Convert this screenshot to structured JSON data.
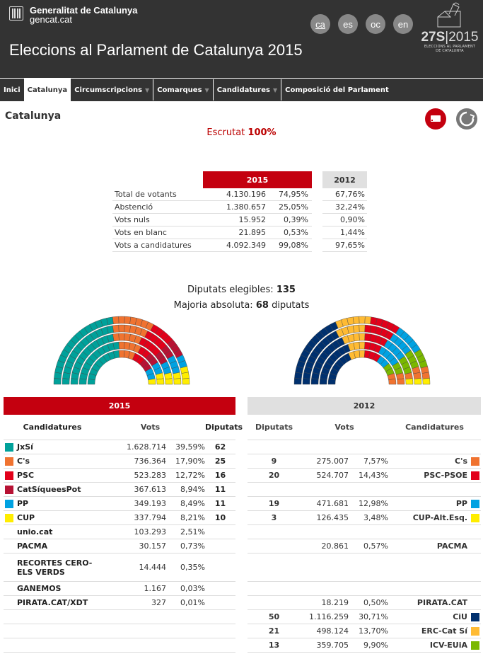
{
  "header": {
    "org_line1": "Generalitat de Catalunya",
    "org_line2": "gencat.cat",
    "title": "Eleccions al Parlament de Catalunya 2015",
    "languages": [
      "ca",
      "es",
      "oc",
      "en"
    ],
    "active_language": "ca",
    "brand": {
      "date": "27S",
      "year": "2015",
      "line1": "ELECCIONS AL PARLAMENT",
      "line2": "DE CATALUNYA"
    }
  },
  "nav": [
    {
      "label": "Inici",
      "dropdown": false,
      "active": false
    },
    {
      "label": "Catalunya",
      "dropdown": false,
      "active": true
    },
    {
      "label": "Circumscripcions",
      "dropdown": true,
      "active": false
    },
    {
      "label": "Comarques",
      "dropdown": true,
      "active": false
    },
    {
      "label": "Candidatures",
      "dropdown": true,
      "active": false
    },
    {
      "label": "Composició del Parlament",
      "dropdown": false,
      "active": false
    }
  ],
  "page": {
    "title": "Catalunya",
    "escrutat_label": "Escrutat",
    "escrutat_value": "100%",
    "print_icon": "print-icon",
    "refresh_icon": "refresh-icon"
  },
  "summary": {
    "year_current": "2015",
    "year_previous": "2012",
    "rows": [
      {
        "label": "Total de votants",
        "votes": "4.130.196",
        "pct": "74,95%",
        "pct_2012": "67,76%"
      },
      {
        "label": "Abstenció",
        "votes": "1.380.657",
        "pct": "25,05%",
        "pct_2012": "32,24%"
      },
      {
        "label": "Vots nuls",
        "votes": "15.952",
        "pct": "0,39%",
        "pct_2012": "0,90%"
      },
      {
        "label": "Vots en blanc",
        "votes": "21.895",
        "pct": "0,53%",
        "pct_2012": "1,44%"
      },
      {
        "label": "Vots a candidatures",
        "votes": "4.092.349",
        "pct": "99,08%",
        "pct_2012": "97,65%"
      }
    ]
  },
  "deputies": {
    "elegibles_label": "Diputats elegibles:",
    "elegibles_value": "135",
    "majoria_label": "Majoria absoluta:",
    "majoria_value": "68",
    "majoria_suffix": "diputats"
  },
  "colors": {
    "accent_red": "#c4000f",
    "JxSi": "#00a19a",
    "Cs": "#f07330",
    "PSC": "#e2001a",
    "CatSiqueesPot": "#b71234",
    "PP": "#00a2e2",
    "CUP": "#ffed00",
    "CiU": "#00306e",
    "ERC": "#ffbb33",
    "ICV": "#7ab800"
  },
  "chart_data": [
    {
      "type": "parliament",
      "title": "2015",
      "total_seats": 135,
      "categories": [
        "JxSí",
        "C's",
        "PSC",
        "CatSíqueesPot",
        "PP",
        "CUP"
      ],
      "values": [
        62,
        25,
        16,
        11,
        11,
        10
      ],
      "colors": [
        "#00a19a",
        "#f07330",
        "#e2001a",
        "#b71234",
        "#00a2e2",
        "#ffed00"
      ]
    },
    {
      "type": "parliament",
      "title": "2012",
      "total_seats": 135,
      "categories": [
        "CiU",
        "ERC-Cat Sí",
        "PSC-PSOE",
        "PP",
        "ICV-EUiA",
        "C's",
        "CUP-Alt.Esq."
      ],
      "values": [
        50,
        21,
        20,
        19,
        13,
        9,
        3
      ],
      "colors": [
        "#00306e",
        "#ffbb33",
        "#e2001a",
        "#00a2e2",
        "#7ab800",
        "#f07330",
        "#ffed00"
      ]
    }
  ],
  "results_2015": {
    "year": "2015",
    "headers": {
      "name": "Candidatures",
      "votes": "Vots",
      "seats": "Diputats"
    },
    "rows": [
      {
        "name": "JxSí",
        "votes": "1.628.714",
        "pct": "39,59%",
        "seats": "62",
        "color": "#00a19a"
      },
      {
        "name": "C's",
        "votes": "736.364",
        "pct": "17,90%",
        "seats": "25",
        "color": "#f07330"
      },
      {
        "name": "PSC",
        "votes": "523.283",
        "pct": "12,72%",
        "seats": "16",
        "color": "#e2001a"
      },
      {
        "name": "CatSíqueesPot",
        "votes": "367.613",
        "pct": "8,94%",
        "seats": "11",
        "color": "#b71234"
      },
      {
        "name": "PP",
        "votes": "349.193",
        "pct": "8,49%",
        "seats": "11",
        "color": "#00a2e2"
      },
      {
        "name": "CUP",
        "votes": "337.794",
        "pct": "8,21%",
        "seats": "10",
        "color": "#ffed00"
      },
      {
        "name": "unio.cat",
        "votes": "103.293",
        "pct": "2,51%",
        "seats": "",
        "color": ""
      },
      {
        "name": "PACMA",
        "votes": "30.157",
        "pct": "0,73%",
        "seats": "",
        "color": ""
      },
      {
        "name": "RECORTES CERO-ELS VERDS",
        "votes": "14.444",
        "pct": "0,35%",
        "seats": "",
        "color": "",
        "tall": true
      },
      {
        "name": "GANEMOS",
        "votes": "1.167",
        "pct": "0,03%",
        "seats": "",
        "color": ""
      },
      {
        "name": "PIRATA.CAT/XDT",
        "votes": "327",
        "pct": "0,01%",
        "seats": "",
        "color": ""
      },
      {
        "name": "",
        "votes": "",
        "pct": "",
        "seats": "",
        "color": ""
      },
      {
        "name": "",
        "votes": "",
        "pct": "",
        "seats": "",
        "color": ""
      },
      {
        "name": "",
        "votes": "",
        "pct": "",
        "seats": "",
        "color": ""
      }
    ]
  },
  "results_2012": {
    "year": "2012",
    "headers": {
      "seats": "Diputats",
      "votes": "Vots",
      "name": "Candidatures"
    },
    "rows": [
      {
        "seats": "",
        "votes": "",
        "pct": "",
        "name": "",
        "color": ""
      },
      {
        "seats": "9",
        "votes": "275.007",
        "pct": "7,57%",
        "name": "C's",
        "color": "#f07330"
      },
      {
        "seats": "20",
        "votes": "524.707",
        "pct": "14,43%",
        "name": "PSC-PSOE",
        "color": "#e2001a"
      },
      {
        "seats": "",
        "votes": "",
        "pct": "",
        "name": "",
        "color": ""
      },
      {
        "seats": "19",
        "votes": "471.681",
        "pct": "12,98%",
        "name": "PP",
        "color": "#00a2e2"
      },
      {
        "seats": "3",
        "votes": "126.435",
        "pct": "3,48%",
        "name": "CUP-Alt.Esq.",
        "color": "#ffed00"
      },
      {
        "seats": "",
        "votes": "",
        "pct": "",
        "name": "",
        "color": ""
      },
      {
        "seats": "",
        "votes": "20.861",
        "pct": "0,57%",
        "name": "PACMA",
        "color": ""
      },
      {
        "seats": "",
        "votes": "",
        "pct": "",
        "name": "",
        "color": "",
        "tall": true
      },
      {
        "seats": "",
        "votes": "",
        "pct": "",
        "name": "",
        "color": ""
      },
      {
        "seats": "",
        "votes": "18.219",
        "pct": "0,50%",
        "name": "PIRATA.CAT",
        "color": ""
      },
      {
        "seats": "50",
        "votes": "1.116.259",
        "pct": "30,71%",
        "name": "CiU",
        "color": "#00306e"
      },
      {
        "seats": "21",
        "votes": "498.124",
        "pct": "13,70%",
        "name": "ERC-Cat Sí",
        "color": "#ffbb33"
      },
      {
        "seats": "13",
        "votes": "359.705",
        "pct": "9,90%",
        "name": "ICV-EUiA",
        "color": "#7ab800"
      }
    ]
  }
}
